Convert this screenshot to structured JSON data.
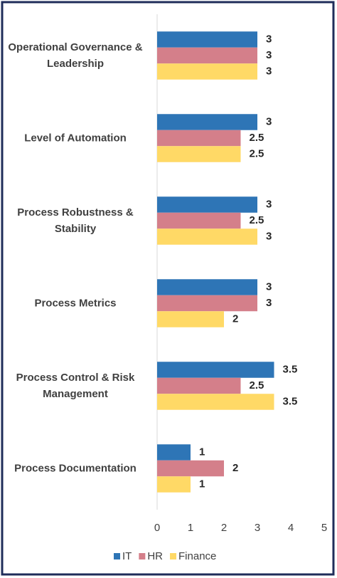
{
  "chart_data": {
    "type": "bar",
    "orientation": "horizontal",
    "categories": [
      "Operational Governance & Leadership",
      "Level of Automation",
      "Process Robustness & Stability",
      "Process Metrics",
      "Process Control & Risk Management",
      "Process Documentation"
    ],
    "series": [
      {
        "name": "IT",
        "color": "#2e75b6",
        "values": [
          3,
          3,
          3,
          3,
          3.5,
          1
        ]
      },
      {
        "name": "HR",
        "color": "#d47f8a",
        "values": [
          3,
          2.5,
          2.5,
          3,
          2.5,
          2
        ]
      },
      {
        "name": "Finance",
        "color": "#ffd966",
        "values": [
          3,
          2.5,
          3,
          2,
          3.5,
          1
        ]
      }
    ],
    "xlim": [
      0,
      5
    ],
    "xticks": [
      0,
      1,
      2,
      3,
      4,
      5
    ],
    "grid": false,
    "legend": "bottom"
  }
}
